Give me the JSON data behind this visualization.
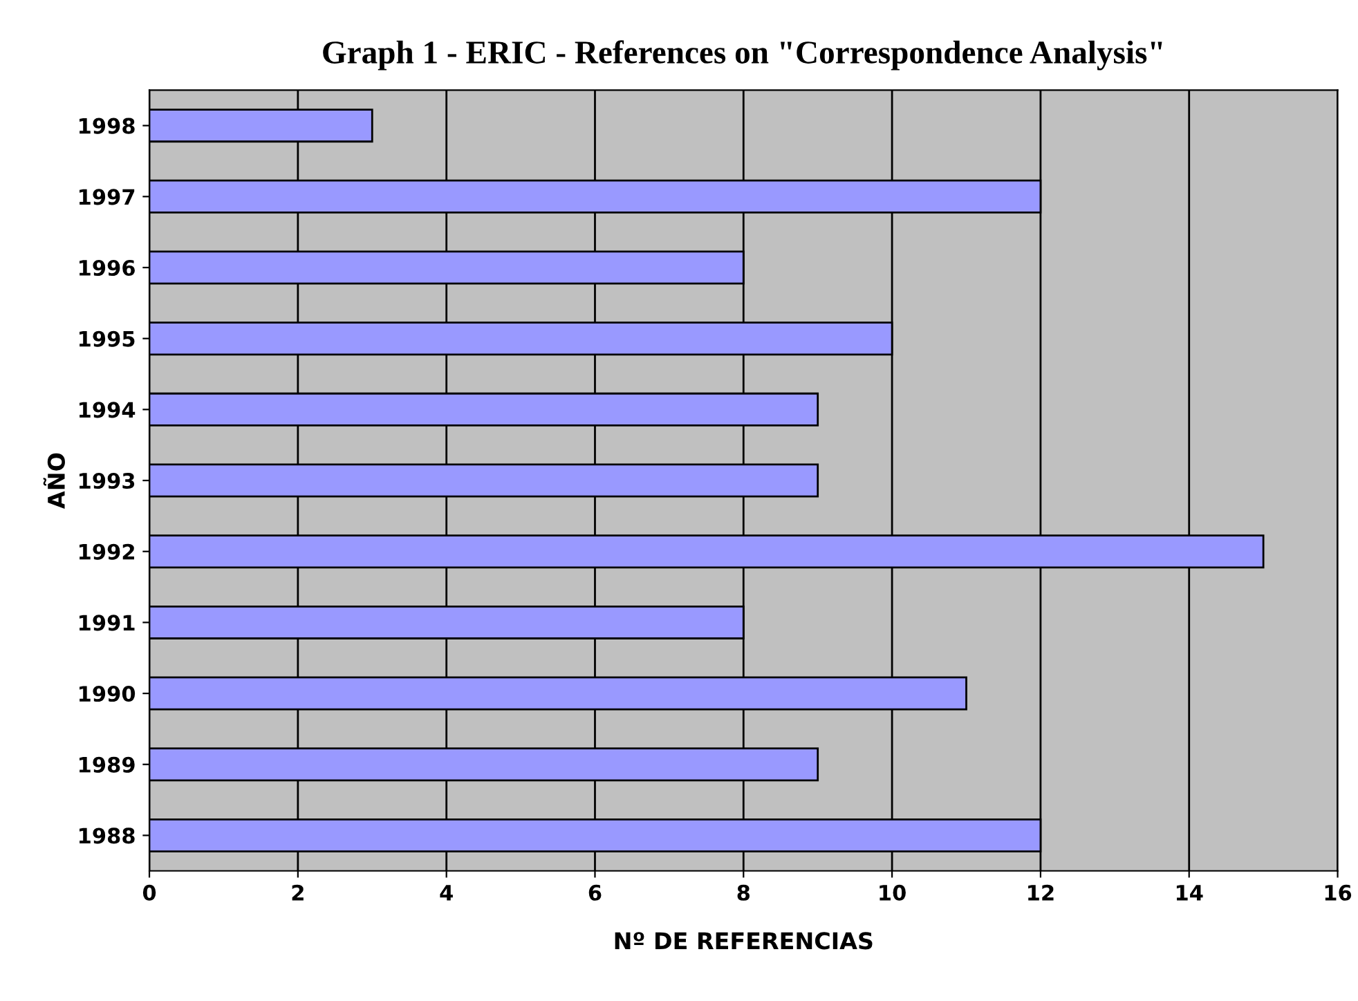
{
  "chart_data": {
    "type": "bar",
    "orientation": "horizontal",
    "title": "Graph 1 - ERIC - References on \"Correspondence Analysis\"",
    "xlabel": "Nº DE REFERENCIAS",
    "ylabel": "AÑO",
    "categories": [
      "1998",
      "1997",
      "1996",
      "1995",
      "1994",
      "1993",
      "1992",
      "1991",
      "1990",
      "1989",
      "1988"
    ],
    "values": [
      3,
      12,
      8,
      10,
      9,
      9,
      15,
      8,
      11,
      9,
      12
    ],
    "color": "#9999ff",
    "xlim": [
      0,
      16
    ],
    "xticks": [
      0,
      2,
      4,
      6,
      8,
      10,
      12,
      14,
      16
    ],
    "grid": "x"
  }
}
